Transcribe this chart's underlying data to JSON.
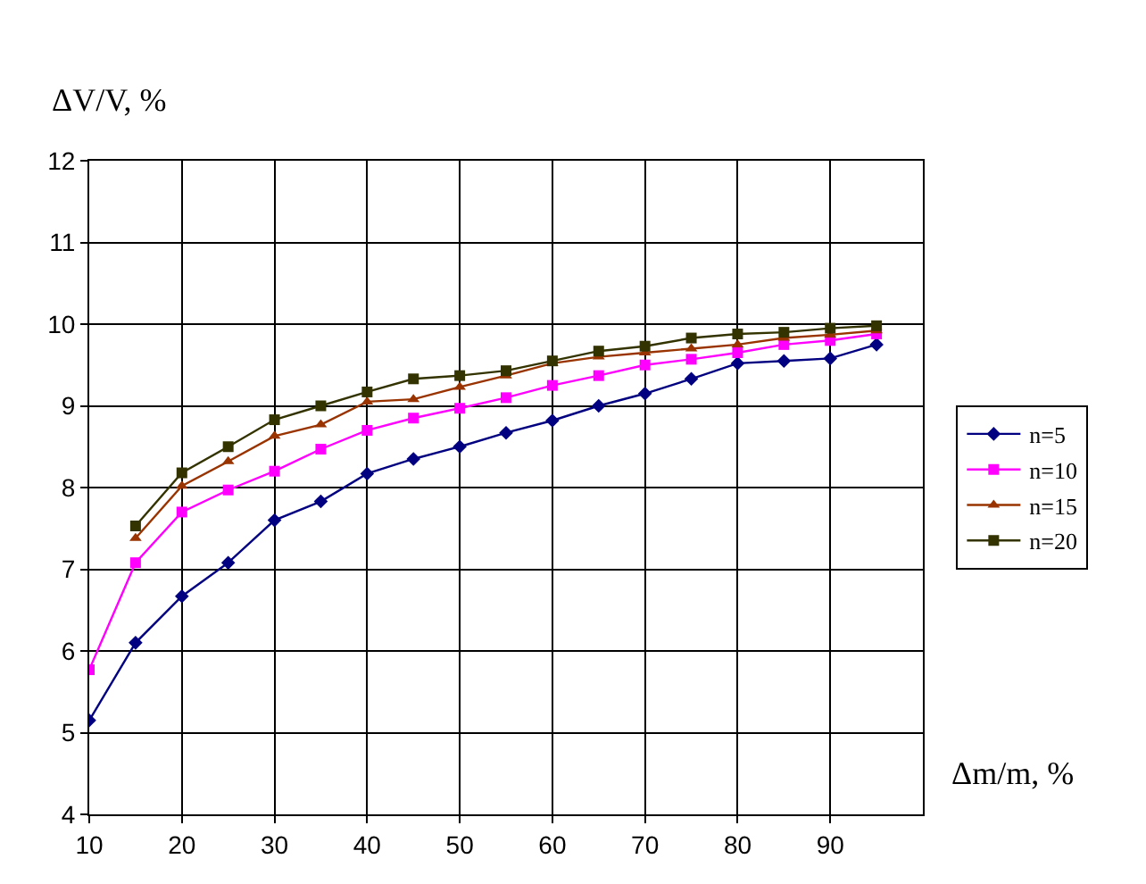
{
  "chart_data": {
    "type": "line",
    "xlabel": "Δm/m, %",
    "ylabel": "ΔV/V, %",
    "x": [
      10,
      15,
      20,
      25,
      30,
      35,
      40,
      45,
      50,
      55,
      60,
      65,
      70,
      75,
      80,
      85,
      90,
      95
    ],
    "series": [
      {
        "name": "n=5",
        "color": "#000080",
        "marker": "diamond",
        "values": [
          5.15,
          6.1,
          6.67,
          7.08,
          7.6,
          7.83,
          8.17,
          8.35,
          8.5,
          8.67,
          8.82,
          9.0,
          9.15,
          9.33,
          9.52,
          9.55,
          9.58,
          9.75
        ]
      },
      {
        "name": "n=10",
        "color": "#ff00ff",
        "marker": "square",
        "values": [
          5.77,
          7.08,
          7.7,
          7.97,
          8.2,
          8.47,
          8.7,
          8.85,
          8.97,
          9.1,
          9.25,
          9.37,
          9.5,
          9.57,
          9.65,
          9.75,
          9.8,
          9.88
        ]
      },
      {
        "name": "n=15",
        "color": "#993300",
        "marker": "triangle",
        "values": [
          null,
          7.38,
          8.02,
          8.32,
          8.63,
          8.77,
          9.05,
          9.08,
          9.23,
          9.37,
          9.52,
          9.6,
          9.65,
          9.7,
          9.75,
          9.83,
          9.87,
          9.92
        ]
      },
      {
        "name": "n=20",
        "color": "#333300",
        "marker": "square",
        "values": [
          null,
          7.53,
          8.18,
          8.5,
          8.83,
          9.0,
          9.17,
          9.33,
          9.37,
          9.43,
          9.55,
          9.67,
          9.73,
          9.83,
          9.88,
          9.9,
          9.95,
          9.98
        ]
      }
    ],
    "xlim": [
      10,
      100
    ],
    "xticks": [
      10,
      20,
      30,
      40,
      50,
      60,
      70,
      80,
      90
    ],
    "ylim": [
      4,
      12
    ],
    "yticks": [
      4,
      5,
      6,
      7,
      8,
      9,
      10,
      11,
      12
    ],
    "grid": true,
    "legend": "right",
    "line_style": "solid"
  }
}
